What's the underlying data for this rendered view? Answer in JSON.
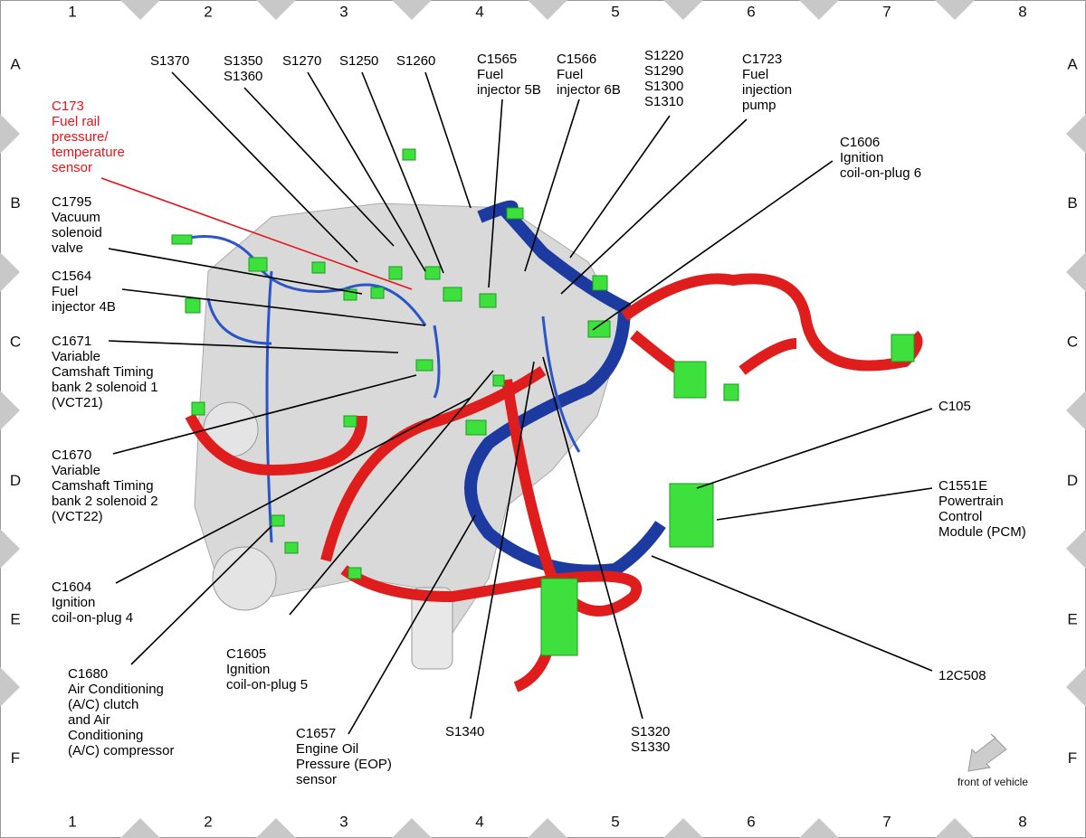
{
  "grid": {
    "columns": [
      "1",
      "2",
      "3",
      "4",
      "5",
      "6",
      "7",
      "8"
    ],
    "rows": [
      "A",
      "B",
      "C",
      "D",
      "E",
      "F"
    ]
  },
  "labels": [
    {
      "lines": [
        "S1370"
      ]
    },
    {
      "lines": [
        "S1350",
        "S1360"
      ]
    },
    {
      "lines": [
        "S1270"
      ]
    },
    {
      "lines": [
        "S1250"
      ]
    },
    {
      "lines": [
        "S1260"
      ]
    },
    {
      "lines": [
        "C1565",
        "Fuel",
        "injector 5B"
      ]
    },
    {
      "lines": [
        "C1566",
        "Fuel",
        "injector 6B"
      ]
    },
    {
      "lines": [
        "S1220",
        "S1290",
        "S1300",
        "S1310"
      ]
    },
    {
      "lines": [
        "C1723",
        "Fuel",
        "injection",
        "pump"
      ]
    },
    {
      "lines": [
        "C1606",
        "Ignition",
        "coil-on-plug 6"
      ]
    },
    {
      "lines": [
        "C173",
        "Fuel rail",
        "pressure/",
        "temperature",
        "sensor"
      ],
      "color": "#e8141b"
    },
    {
      "lines": [
        "C1795",
        "Vacuum",
        "solenoid",
        "valve"
      ]
    },
    {
      "lines": [
        "C1564",
        "Fuel",
        "injector 4B"
      ]
    },
    {
      "lines": [
        "C1671",
        "Variable",
        "Camshaft Timing",
        "bank 2 solenoid 1",
        "(VCT21)"
      ]
    },
    {
      "lines": [
        "C1670",
        "Variable",
        "Camshaft Timing",
        "bank 2 solenoid 2",
        "(VCT22)"
      ]
    },
    {
      "lines": [
        "C1604",
        "Ignition",
        "coil-on-plug 4"
      ]
    },
    {
      "lines": [
        "C1680",
        "Air Conditioning",
        "(A/C) clutch",
        "and Air",
        "Conditioning",
        "(A/C) compressor"
      ]
    },
    {
      "lines": [
        "C1605",
        "Ignition",
        "coil-on-plug 5"
      ]
    },
    {
      "lines": [
        "C1657",
        "Engine Oil",
        "Pressure (EOP)",
        "sensor"
      ]
    },
    {
      "lines": [
        "S1340"
      ]
    },
    {
      "lines": [
        "S1320",
        "S1330"
      ]
    },
    {
      "lines": [
        "C105"
      ]
    },
    {
      "lines": [
        "C1551E",
        "Powertrain",
        "Control",
        "Module (PCM)"
      ]
    },
    {
      "lines": [
        "12C508"
      ]
    }
  ],
  "footer": {
    "note": "front of vehicle"
  }
}
